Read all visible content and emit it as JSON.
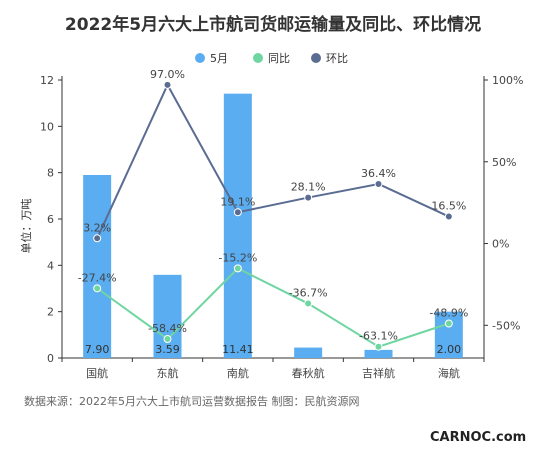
{
  "chart_data": {
    "type": "bar",
    "title": "2022年5月六大上市航司货邮运输量及同比、环比情况",
    "categories": [
      "国航",
      "东航",
      "南航",
      "春秋航",
      "吉祥航",
      "海航"
    ],
    "ylabel": "单位：万吨",
    "ylim": [
      0,
      12
    ],
    "yticks": [
      "0",
      "2",
      "4",
      "6",
      "8",
      "10",
      "12"
    ],
    "y2lim": [
      -70,
      100
    ],
    "y2ticks": [
      {
        "value": 100,
        "label": "100%"
      },
      {
        "value": 50,
        "label": "50%"
      },
      {
        "value": 0,
        "label": "0%"
      },
      {
        "value": -50,
        "label": "-50%"
      }
    ],
    "grid": false,
    "legend_position": "top-center",
    "series": [
      {
        "name": "5月",
        "kind": "bar",
        "axis": "left",
        "color": "#5aadf0",
        "values": [
          7.9,
          3.59,
          11.41,
          0.45,
          0.35,
          2.0
        ],
        "labels": [
          "7.90",
          "3.59",
          "11.41",
          "",
          "",
          "2.00"
        ]
      },
      {
        "name": "同比",
        "kind": "line",
        "axis": "right",
        "color": "#6fd6a1",
        "values": [
          -27.4,
          -58.4,
          -15.2,
          -36.7,
          -63.1,
          -48.9
        ],
        "labels": [
          "-27.4%",
          "-58.4%",
          "-15.2%",
          "-36.7%",
          "-63.1%",
          "-48.9%"
        ]
      },
      {
        "name": "环比",
        "kind": "line",
        "axis": "right",
        "color": "#5b6c93",
        "values": [
          3.2,
          97.0,
          19.1,
          28.1,
          36.4,
          16.5
        ],
        "labels": [
          "3.2%",
          "97.0%",
          "19.1%",
          "28.1%",
          "36.4%",
          "16.5%"
        ]
      }
    ],
    "source": "数据来源：2022年5月六大上市航司运营数据报告  制图：民航资源网"
  },
  "watermark": "CARNOC.com"
}
